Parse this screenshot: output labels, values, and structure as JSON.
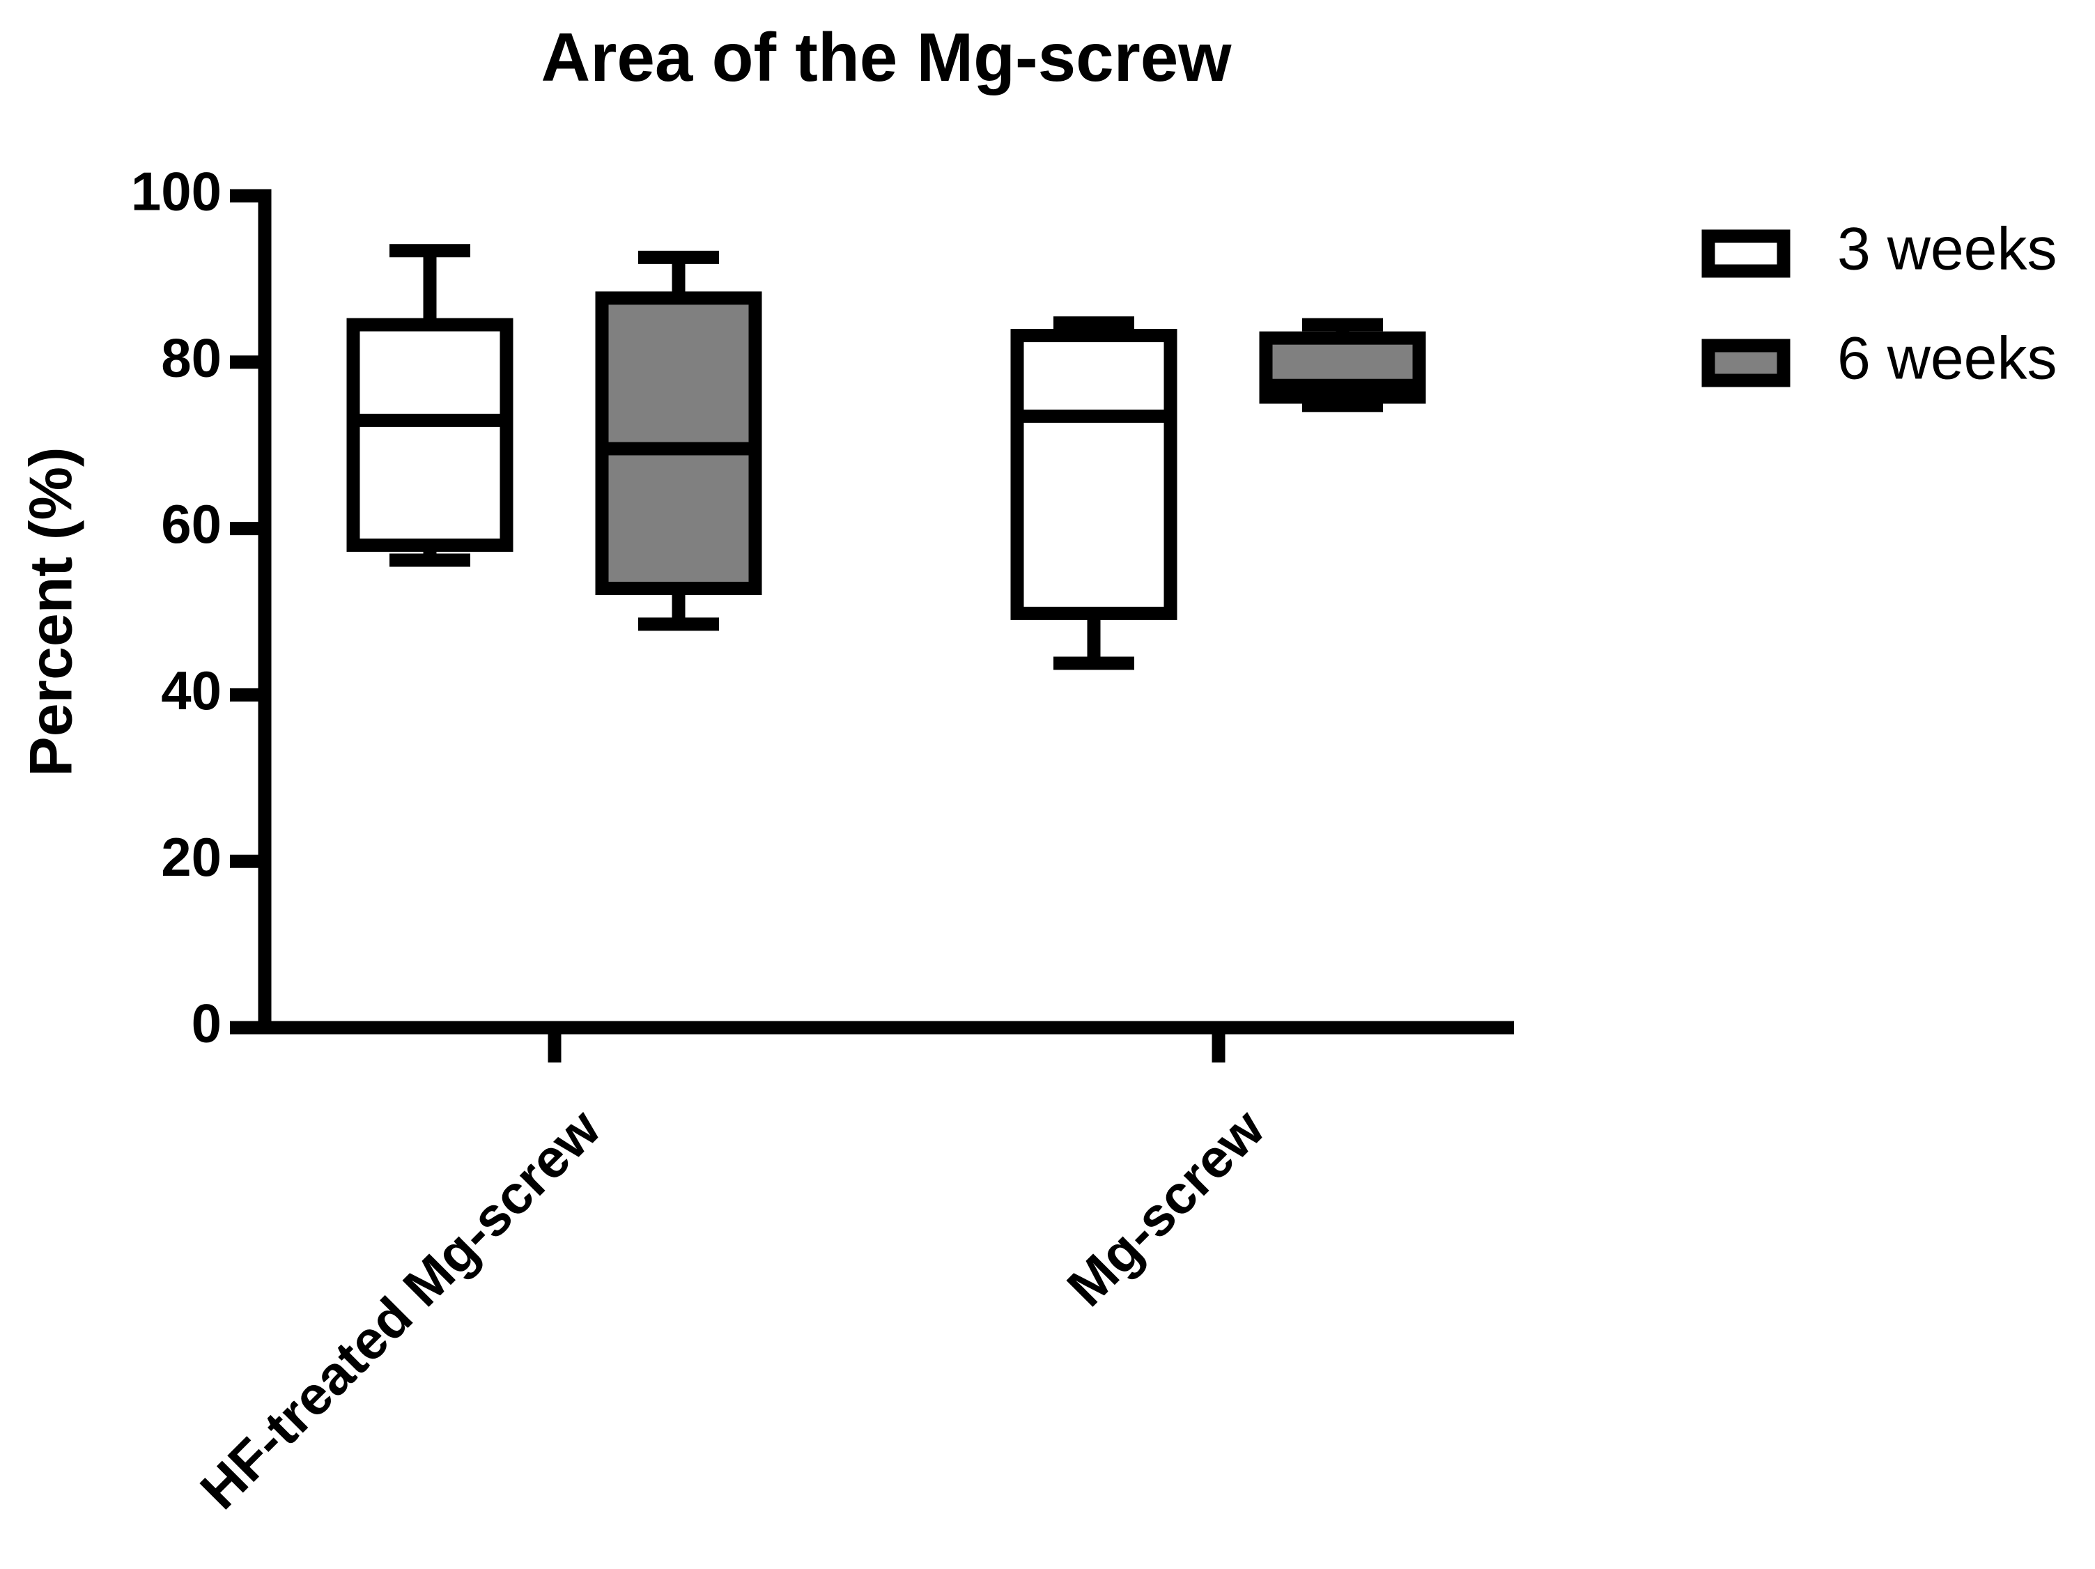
{
  "chart_data": {
    "type": "box",
    "title": "Area of the Mg-screw",
    "y_label": "Percent (%)",
    "categories": [
      "HF-treated Mg-screw",
      "Mg-screw"
    ],
    "series": [
      {
        "name": "3 weeks",
        "color": "#ffffff",
        "min": [
          56.2,
          43.8
        ],
        "q1": [
          58.0,
          49.8
        ],
        "median": [
          73.0,
          73.5
        ],
        "q3": [
          84.5,
          83.2
        ],
        "max": [
          93.4,
          84.7
        ]
      },
      {
        "name": "6 weeks",
        "color": "#808080",
        "min": [
          48.5,
          74.8
        ],
        "q1": [
          52.8,
          75.8
        ],
        "median": [
          69.6,
          77.2
        ],
        "q3": [
          87.7,
          82.9
        ],
        "max": [
          92.6,
          84.5
        ]
      }
    ],
    "ylim": [
      0,
      100
    ],
    "yticks": [
      0,
      20,
      40,
      60,
      80,
      100
    ],
    "grid": false,
    "legend": "upper right"
  }
}
